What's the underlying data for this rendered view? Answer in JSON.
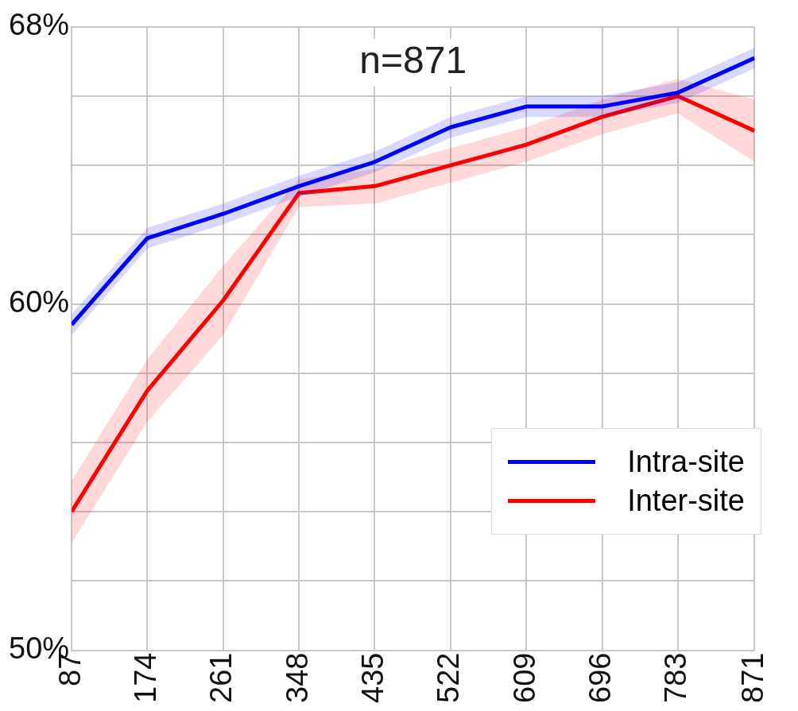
{
  "chart_data": {
    "type": "line",
    "title": "n=871",
    "x": [
      87,
      174,
      261,
      348,
      435,
      522,
      609,
      696,
      783,
      871
    ],
    "xlim": [
      87,
      871
    ],
    "xticks": [
      87,
      174,
      261,
      348,
      435,
      522,
      609,
      696,
      783,
      871
    ],
    "ylim": [
      50,
      68
    ],
    "yticks": [
      {
        "value": 50,
        "label": "50%"
      },
      {
        "value": 52,
        "label": null
      },
      {
        "value": 54,
        "label": null
      },
      {
        "value": 56,
        "label": null
      },
      {
        "value": 58,
        "label": null
      },
      {
        "value": 60,
        "label": "60%"
      },
      {
        "value": 62,
        "label": null
      },
      {
        "value": 64,
        "label": null
      },
      {
        "value": 66,
        "label": null
      },
      {
        "value": 68,
        "label": "68%"
      }
    ],
    "grid": true,
    "legend": "bottom right",
    "marker": "none",
    "line_style": "solid",
    "series": [
      {
        "name": "Intra-site",
        "color": "#0000ff",
        "values": [
          59.4,
          61.9,
          62.6,
          63.4,
          64.1,
          65.1,
          65.7,
          65.7,
          66.1,
          67.1
        ],
        "lower": [
          59.1,
          61.6,
          62.3,
          63.1,
          63.8,
          64.8,
          65.4,
          65.4,
          65.8,
          66.8
        ],
        "upper": [
          59.7,
          62.2,
          62.9,
          63.7,
          64.4,
          65.4,
          66.0,
          66.0,
          66.4,
          67.4
        ]
      },
      {
        "name": "Inter-site",
        "color": "#ff0000",
        "values": [
          54.0,
          57.5,
          60.1,
          63.2,
          63.4,
          64.0,
          64.6,
          65.4,
          66.0,
          65.0
        ],
        "lower": [
          53.1,
          56.6,
          59.1,
          62.8,
          62.9,
          63.5,
          64.1,
          64.9,
          65.5,
          64.1
        ],
        "upper": [
          54.9,
          58.4,
          61.1,
          63.6,
          63.9,
          64.5,
          65.1,
          65.9,
          66.5,
          65.9
        ]
      }
    ]
  }
}
